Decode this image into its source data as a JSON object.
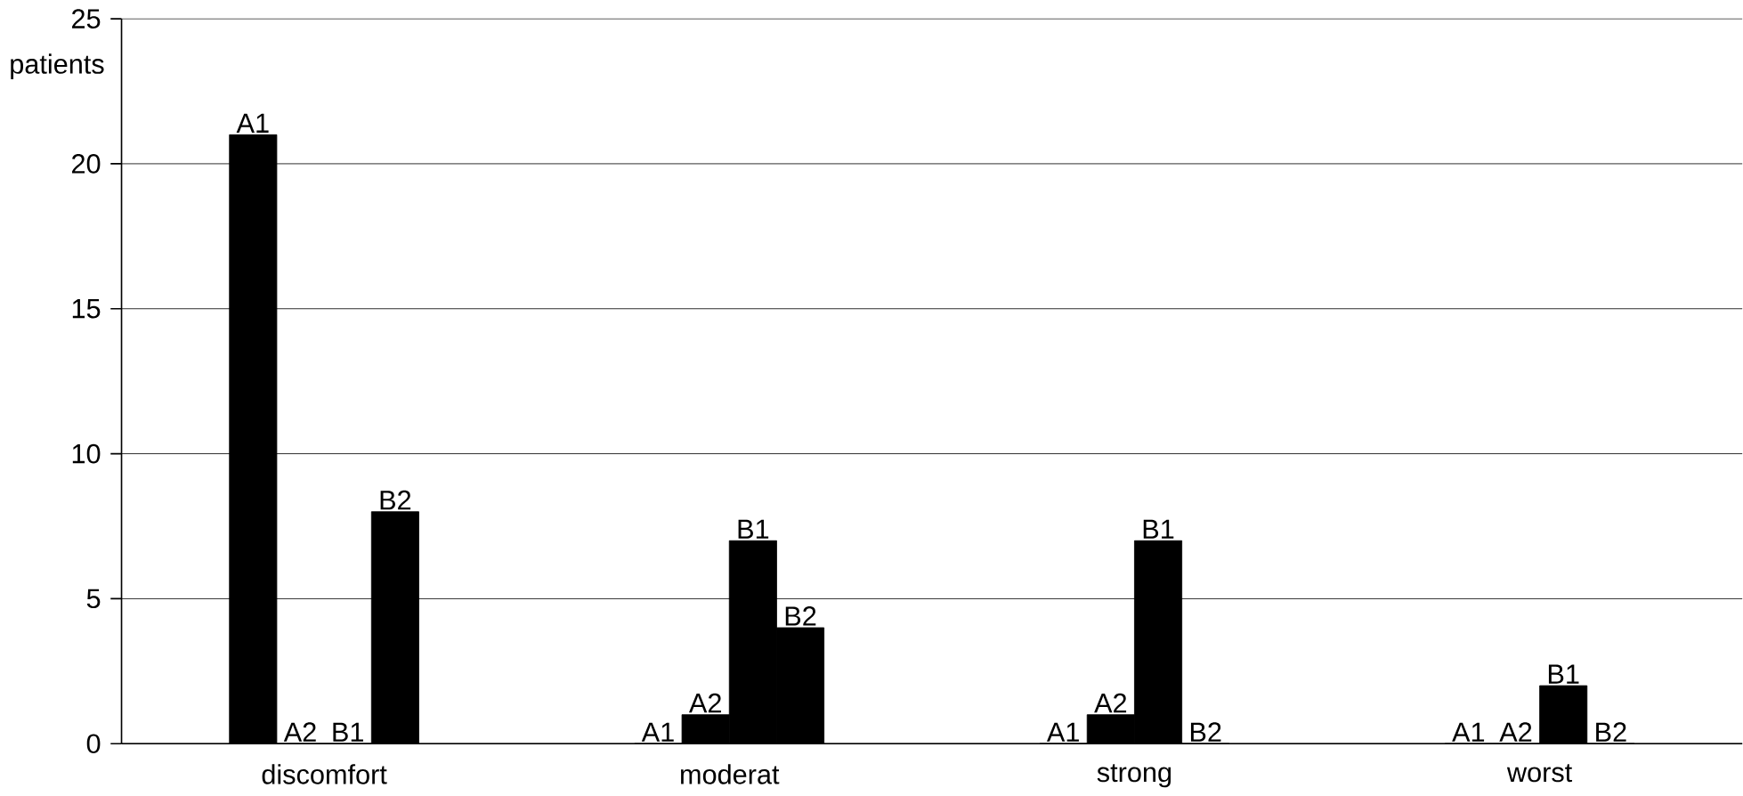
{
  "chart_data": {
    "type": "bar",
    "ylabel": "patients",
    "categories": [
      "discomfort",
      "moderat",
      "strong",
      "worst"
    ],
    "series": [
      {
        "name": "A1",
        "color": "#000000",
        "values": [
          21,
          0,
          0,
          0
        ]
      },
      {
        "name": "A2",
        "color": "#000000",
        "values": [
          0,
          1,
          1,
          0
        ]
      },
      {
        "name": "B1",
        "color": "#000000",
        "values": [
          0,
          7,
          7,
          2
        ]
      },
      {
        "name": "B2",
        "color": "#000000",
        "values": [
          8,
          4,
          0,
          0
        ]
      }
    ],
    "ylim": [
      0,
      25
    ],
    "yticks": [
      0,
      5,
      10,
      15,
      20,
      25
    ],
    "grid": "y"
  }
}
